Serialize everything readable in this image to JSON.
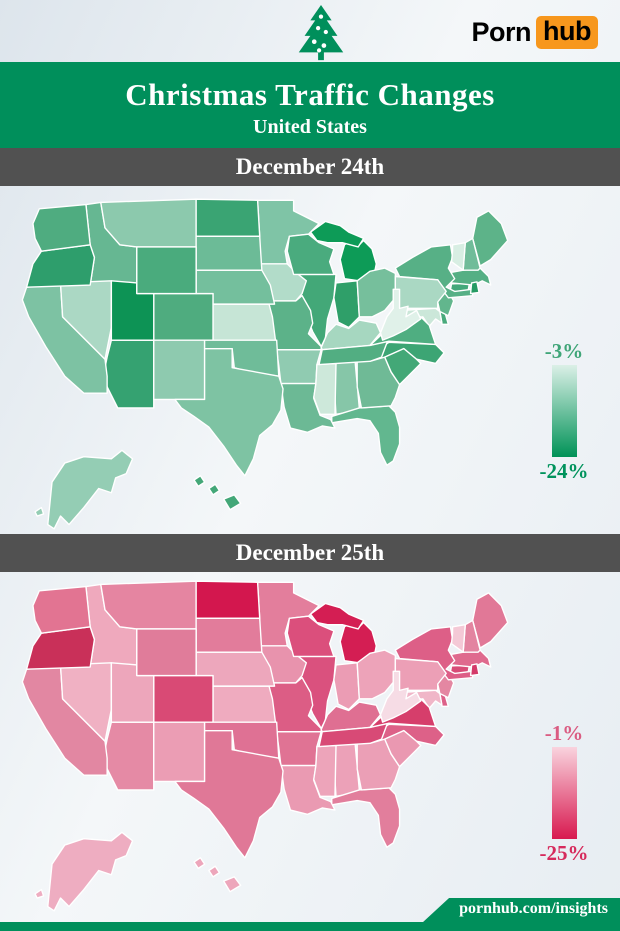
{
  "header": {
    "logo": {
      "part1": "Porn",
      "part2": "hub",
      "badge_color": "#f7971d",
      "text_color": "#000000"
    },
    "tree_color": "#008f5b"
  },
  "banner": {
    "title": "Christmas Traffic Changes",
    "subtitle": "United States",
    "background": "#008f5b",
    "text_color": "#ffffff"
  },
  "section_bar": {
    "background": "#515151",
    "text_color": "#ffffff"
  },
  "footer": {
    "text": "pornhub.com/insights",
    "background": "#008f5b",
    "text_color": "#ffffff"
  },
  "map": {
    "stroke": "#ffffff",
    "geometry": {
      "WA": [
        "16,24 22,10 66,6 70,44 24,50 18,38"
      ],
      "OR": [
        "24,50 70,44 74,56 70,82 10,84 16,62"
      ],
      "CA": [
        "10,84 42,80 44,112 78,146 84,152 86,168 86,184 64,184 46,168 28,140 12,112 6,96"
      ],
      "NV": [
        "42,80 90,78 90,122 84,152 78,146 44,112"
      ],
      "ID": [
        "66,6 80,4 84,28 98,44 114,46 114,80 70,82 74,56 70,44"
      ],
      "MT": [
        "80,4 170,1 170,46 114,46 98,44 84,28"
      ],
      "WY": [
        "114,46 170,46 170,90 114,90"
      ],
      "UT": [
        "90,78 114,80 114,90 130,90 130,134 90,134"
      ],
      "CO": [
        "130,90 186,90 186,134 130,134"
      ],
      "AZ": [
        "90,134 130,134 130,198 96,198 82,170 86,150"
      ],
      "NM": [
        "130,134 178,134 178,190 130,190"
      ],
      "ND": [
        "170,1 228,2 230,36 170,36"
      ],
      "SD": [
        "170,36 230,36 232,68 170,68"
      ],
      "NE": [
        "170,68 232,68 240,82 244,100 186,100 186,90 170,90"
      ],
      "KS": [
        "186,100 244,100 246,134 186,134"
      ],
      "OK": [
        "178,134 246,134 248,168 226,166 206,160 204,142 178,142"
      ],
      "TX": [
        "178,142 204,142 204,160 248,168 252,180 250,200 242,214 230,224 224,246 216,262 208,252 196,234 182,216 168,206 156,198 150,190 178,190"
      ],
      "MN": [
        "228,2 262,2 262,12 286,24 276,34 258,36 254,50 256,62 230,62 230,36"
      ],
      "IA": [
        "230,62 256,62 264,70 274,78 270,90 264,97 238,97 232,80"
      ],
      "MO": [
        "238,97 264,97 270,92 278,106 280,118 276,128 288,140 288,143 246,143 242,112"
      ],
      "AR": [
        "246,143 288,143 284,157 283,175 250,175 248,158"
      ],
      "LA": [
        "250,175 283,175 281,189 287,205 297,209 301,217 289,215 275,221 259,217 253,197"
      ],
      "MS": [
        "284,157 302,156 301,204 287,204 281,188 283,175"
      ],
      "AL": [
        "302,156 320,154 324,198 314,202 302,204 300,172"
      ],
      "GA": [
        "322,154 348,150 354,164 362,176 358,188 354,196 326,198 322,178"
      ],
      "FL": [
        "298,206 324,198 352,196 358,202 362,216 362,232 356,248 350,252 344,240 342,222 334,210 322,208 310,210 298,212"
      ],
      "SC": [
        "348,150 366,142 378,152 382,156 372,166 362,176 354,164"
      ],
      "NC": [
        "343,142 352,136 396,138 404,146 396,156 378,152 366,142 348,150 334,154"
      ],
      "TN": [
        "286,157 289,143 334,139 351,134 345,150 334,154"
      ],
      "KY": [
        "288,141 294,127 302,119 314,123 324,115 340,118 344,127 334,139 289,143"
      ],
      "IL": [
        "262,72 302,72 300,94 294,114 292,132 288,140 280,126 272,106 267,86"
      ],
      "IN": [
        "302,80 322,78 324,112 314,122 304,117 300,94"
      ],
      "OH": [
        "322,78 334,69 348,66 358,71 358,94 348,106 336,112 324,112"
      ],
      "WV": [
        "356,86 362,86 362,104 370,102 368,112 378,106 382,114 368,124 356,130 346,134 344,127 350,112 356,104"
      ],
      "VA": [
        "334,139 348,126 360,116 382,112 390,120 396,138 352,135"
      ],
      "MD": [
        "364,106 396,104 400,107 402,118 396,114 390,121 384,112 374,114 366,112"
      ],
      "DE": [
        "400,107 404,105 408,119 402,119"
      ],
      "PA": [
        "358,74 398,77 406,88 398,98 398,104 358,104"
      ],
      "NJ": [
        "400,90 408,88 413,97 408,111 400,107 398,98"
      ],
      "NY": [
        "362,74 358,66 374,56 392,46 410,44 412,56 408,66 414,76 406,84 414,88 430,86 431,92 408,94 402,86 398,77"
      ],
      "VT": [
        "412,44 424,42 422,68 411,60 412,50"
      ],
      "NH": [
        "424,42 431,38 438,66 436,68 422,68"
      ],
      "ME": [
        "431,38 435,18 446,12 458,24 464,40 448,58 438,64"
      ],
      "MA": [
        "411,70 422,68 438,66 446,74 448,82 440,78 432,82 411,80"
      ],
      "CT": [
        "411,81 428,80 426,91 409,92"
      ],
      "RI": [
        "430,80 435,79 437,89 429,90"
      ],
      "MI": [
        "310,76 306,58 310,44 318,38 324,44 328,40 336,48 340,62 338,72 331,79",
        "278,32 292,22 306,26 314,32 328,38 323,46 308,42 294,42 284,40"
      ],
      "WI": [
        "258,36 276,34 286,42 300,48 296,60 300,72 262,72 256,50"
      ],
      "AK": [
        "30,308 34,268 46,250 64,244 90,246 100,238 110,246 104,260 94,264 90,278 78,274 64,292 50,308 42,300 36,312",
        "18,296 24,292 26,298 20,300"
      ],
      "HI": [
        "168,266 174,262 178,268 172,272",
        "182,274 188,270 192,276 186,280",
        "196,284 206,280 212,288 202,294"
      ]
    }
  },
  "chart_data": [
    {
      "type": "choropleth",
      "title": "December 24th",
      "region": "United States",
      "legend_top": "-3%",
      "legend_bottom": "-24%",
      "legend_top_color": "#dbf0e7",
      "legend_bottom_color": "#009257",
      "legend_top_label_color": "#3fa578",
      "legend_bottom_label_color": "#00935c",
      "states": [
        {
          "abbr": "AL",
          "fill": "#86c6a8"
        },
        {
          "abbr": "AK",
          "fill": "#94cdb4"
        },
        {
          "abbr": "AZ",
          "fill": "#35a271"
        },
        {
          "abbr": "AR",
          "fill": "#90cbb1"
        },
        {
          "abbr": "CA",
          "fill": "#7dc2a3"
        },
        {
          "abbr": "CO",
          "fill": "#4fac7f"
        },
        {
          "abbr": "CT",
          "fill": "#43a87a"
        },
        {
          "abbr": "DE",
          "fill": "#49aa7c"
        },
        {
          "abbr": "FL",
          "fill": "#62b78f"
        },
        {
          "abbr": "GA",
          "fill": "#6fba96"
        },
        {
          "abbr": "HI",
          "fill": "#43a778"
        },
        {
          "abbr": "ID",
          "fill": "#66b792"
        },
        {
          "abbr": "IL",
          "fill": "#43a878"
        },
        {
          "abbr": "IN",
          "fill": "#2f9f69"
        },
        {
          "abbr": "IA",
          "fill": "#b2dcc9"
        },
        {
          "abbr": "KS",
          "fill": "#c6e5d6"
        },
        {
          "abbr": "KY",
          "fill": "#a6d7c0"
        },
        {
          "abbr": "LA",
          "fill": "#6cb995"
        },
        {
          "abbr": "ME",
          "fill": "#5db389"
        },
        {
          "abbr": "MD",
          "fill": "#cbe7d9"
        },
        {
          "abbr": "MA",
          "fill": "#55af84"
        },
        {
          "abbr": "MI",
          "fill": "#0d9b57"
        },
        {
          "abbr": "MN",
          "fill": "#7fc4a6"
        },
        {
          "abbr": "MS",
          "fill": "#cde8da"
        },
        {
          "abbr": "MO",
          "fill": "#5cb289"
        },
        {
          "abbr": "MT",
          "fill": "#8cc9ad"
        },
        {
          "abbr": "NE",
          "fill": "#74bf9d"
        },
        {
          "abbr": "NV",
          "fill": "#abd8c4"
        },
        {
          "abbr": "NH",
          "fill": "#70bc99"
        },
        {
          "abbr": "NJ",
          "fill": "#62b68d"
        },
        {
          "abbr": "NM",
          "fill": "#8ecaaf"
        },
        {
          "abbr": "NY",
          "fill": "#57b086"
        },
        {
          "abbr": "NC",
          "fill": "#3ca574"
        },
        {
          "abbr": "ND",
          "fill": "#3aa473"
        },
        {
          "abbr": "OH",
          "fill": "#76bf9c"
        },
        {
          "abbr": "OK",
          "fill": "#6fbc99"
        },
        {
          "abbr": "OR",
          "fill": "#2e9e6c"
        },
        {
          "abbr": "PA",
          "fill": "#aad8c3"
        },
        {
          "abbr": "RI",
          "fill": "#259b63"
        },
        {
          "abbr": "SC",
          "fill": "#43a877"
        },
        {
          "abbr": "SD",
          "fill": "#6cbb97"
        },
        {
          "abbr": "TN",
          "fill": "#52ae82"
        },
        {
          "abbr": "TX",
          "fill": "#7ec3a3"
        },
        {
          "abbr": "UT",
          "fill": "#0d9355"
        },
        {
          "abbr": "VT",
          "fill": "#d8eee3"
        },
        {
          "abbr": "VA",
          "fill": "#4fae81"
        },
        {
          "abbr": "WA",
          "fill": "#4fac80"
        },
        {
          "abbr": "WV",
          "fill": "#e0f1e9"
        },
        {
          "abbr": "WI",
          "fill": "#4aab7e"
        },
        {
          "abbr": "WY",
          "fill": "#4aab7d"
        }
      ]
    },
    {
      "type": "choropleth",
      "title": "December 25th",
      "region": "United States",
      "legend_top": "-1%",
      "legend_bottom": "-25%",
      "legend_top_color": "#f9d3de",
      "legend_bottom_color": "#d8194f",
      "legend_top_label_color": "#da5c82",
      "legend_bottom_label_color": "#d62a5c",
      "states": [
        {
          "abbr": "AL",
          "fill": "#eca1b8"
        },
        {
          "abbr": "AK",
          "fill": "#eeadc1"
        },
        {
          "abbr": "AZ",
          "fill": "#e58aa5"
        },
        {
          "abbr": "AR",
          "fill": "#e07394"
        },
        {
          "abbr": "CA",
          "fill": "#e287a2"
        },
        {
          "abbr": "CO",
          "fill": "#d94a75"
        },
        {
          "abbr": "CT",
          "fill": "#d84c77"
        },
        {
          "abbr": "DE",
          "fill": "#dd6189"
        },
        {
          "abbr": "FL",
          "fill": "#e27e9c"
        },
        {
          "abbr": "GA",
          "fill": "#eb9fb6"
        },
        {
          "abbr": "HI",
          "fill": "#eda6bb"
        },
        {
          "abbr": "ID",
          "fill": "#efa9bd"
        },
        {
          "abbr": "IL",
          "fill": "#da517e"
        },
        {
          "abbr": "IN",
          "fill": "#eb9cb4"
        },
        {
          "abbr": "IA",
          "fill": "#e893ad"
        },
        {
          "abbr": "KS",
          "fill": "#efabbf"
        },
        {
          "abbr": "KY",
          "fill": "#df6f92"
        },
        {
          "abbr": "LA",
          "fill": "#ea9ab2"
        },
        {
          "abbr": "ME",
          "fill": "#e17897"
        },
        {
          "abbr": "MD",
          "fill": "#f0b6c8"
        },
        {
          "abbr": "MA",
          "fill": "#df6a8e"
        },
        {
          "abbr": "MI",
          "fill": "#d41e53"
        },
        {
          "abbr": "MN",
          "fill": "#e37e9c"
        },
        {
          "abbr": "MS",
          "fill": "#eda4ba"
        },
        {
          "abbr": "MO",
          "fill": "#dc5d85"
        },
        {
          "abbr": "MT",
          "fill": "#e585a1"
        },
        {
          "abbr": "NE",
          "fill": "#eda7bc"
        },
        {
          "abbr": "NV",
          "fill": "#f0b1c3"
        },
        {
          "abbr": "NH",
          "fill": "#e384a0"
        },
        {
          "abbr": "NJ",
          "fill": "#e487a2"
        },
        {
          "abbr": "NM",
          "fill": "#eb9db4"
        },
        {
          "abbr": "NY",
          "fill": "#dd5f87"
        },
        {
          "abbr": "NC",
          "fill": "#dd6188"
        },
        {
          "abbr": "ND",
          "fill": "#d3174e"
        },
        {
          "abbr": "OH",
          "fill": "#eda3b9"
        },
        {
          "abbr": "OK",
          "fill": "#df7194"
        },
        {
          "abbr": "OR",
          "fill": "#c93059"
        },
        {
          "abbr": "PA",
          "fill": "#ec9fb6"
        },
        {
          "abbr": "RI",
          "fill": "#d43a69"
        },
        {
          "abbr": "SC",
          "fill": "#ea98b1"
        },
        {
          "abbr": "SD",
          "fill": "#e27c9b"
        },
        {
          "abbr": "TN",
          "fill": "#d84a76"
        },
        {
          "abbr": "TX",
          "fill": "#e07897"
        },
        {
          "abbr": "UT",
          "fill": "#eda6bb"
        },
        {
          "abbr": "VT",
          "fill": "#f4c9d6"
        },
        {
          "abbr": "VA",
          "fill": "#d63e6b"
        },
        {
          "abbr": "WA",
          "fill": "#e27492"
        },
        {
          "abbr": "WV",
          "fill": "#f6dce5"
        },
        {
          "abbr": "WI",
          "fill": "#db4f7c"
        },
        {
          "abbr": "WY",
          "fill": "#e07c9a"
        }
      ]
    }
  ]
}
